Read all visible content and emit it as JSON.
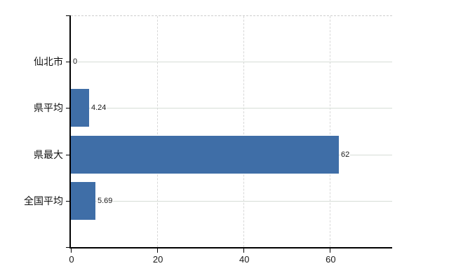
{
  "chart_data": {
    "type": "bar",
    "orientation": "horizontal",
    "title": "",
    "xlabel": "",
    "ylabel": "",
    "categories": [
      "仙北市",
      "県平均",
      "県最大",
      "全国平均"
    ],
    "values": [
      0,
      4.24,
      62,
      5.69
    ],
    "value_labels": [
      "0",
      "4.24",
      "62",
      "5.69"
    ],
    "x_ticks": [
      0,
      20,
      40,
      60
    ],
    "x_tick_labels": [
      "0",
      "20",
      "40",
      "60"
    ],
    "xlim": [
      0,
      74.4
    ],
    "grid": {
      "vertical": "dashed",
      "horizontal": "solid",
      "plot_top_border": "dashed"
    },
    "legend": "none",
    "colors": {
      "bar": "#3f6ea7",
      "axis": "#000000",
      "grid_vertical": "#d8d8d8",
      "grid_horizontal": "#d6ddd6",
      "plot_top_border": "#cdcdcd",
      "text": "#1a1a1a",
      "background": "#ffffff"
    }
  }
}
